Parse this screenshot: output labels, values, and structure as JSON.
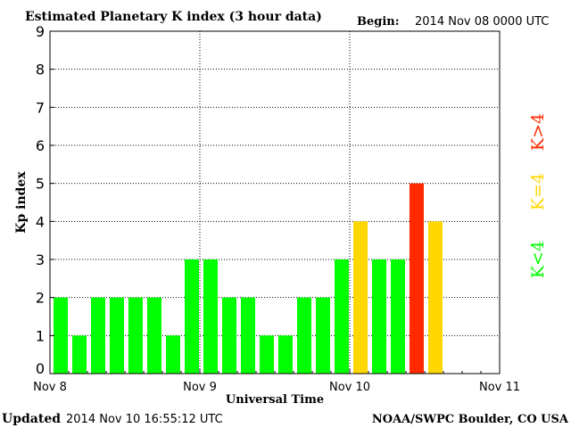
{
  "title": "Estimated Planetary K index (3 hour data)",
  "begin_label": "Begin:",
  "begin_value": "2014 Nov 08 0000 UTC",
  "updated_label": "Updated",
  "updated_value": "2014 Nov 10 16:55:12 UTC",
  "credit": "NOAA/SWPC Boulder, CO USA",
  "legend": {
    "high": "K>4",
    "equal": "K=4",
    "low": "K<4"
  },
  "colors": {
    "low": "#00ff00",
    "equal": "#ffd700",
    "high": "#ff2a00",
    "grid": "#000000",
    "axis": "#000000"
  },
  "chart_data": {
    "type": "bar",
    "xlabel": "Universal Time",
    "ylabel": "Kp index",
    "ylim": [
      0,
      9
    ],
    "y_ticks": [
      "0",
      "1",
      "2",
      "3",
      "4",
      "5",
      "6",
      "7",
      "8",
      "9"
    ],
    "x_ticks": [
      "Nov 8",
      "Nov 9",
      "Nov 10",
      "Nov 11"
    ],
    "x_range_days": 3,
    "interval_hours": 3,
    "grid": true,
    "values": [
      2,
      1,
      2,
      2,
      2,
      2,
      1,
      3,
      3,
      2,
      2,
      1,
      1,
      2,
      2,
      3,
      4,
      3,
      3,
      5,
      4
    ],
    "categories": [
      "Nov 8 00",
      "Nov 8 03",
      "Nov 8 06",
      "Nov 8 09",
      "Nov 8 12",
      "Nov 8 15",
      "Nov 8 18",
      "Nov 8 21",
      "Nov 9 00",
      "Nov 9 03",
      "Nov 9 06",
      "Nov 9 09",
      "Nov 9 12",
      "Nov 9 15",
      "Nov 9 18",
      "Nov 9 21",
      "Nov 10 00",
      "Nov 10 03",
      "Nov 10 06",
      "Nov 10 09",
      "Nov 10 12"
    ]
  }
}
